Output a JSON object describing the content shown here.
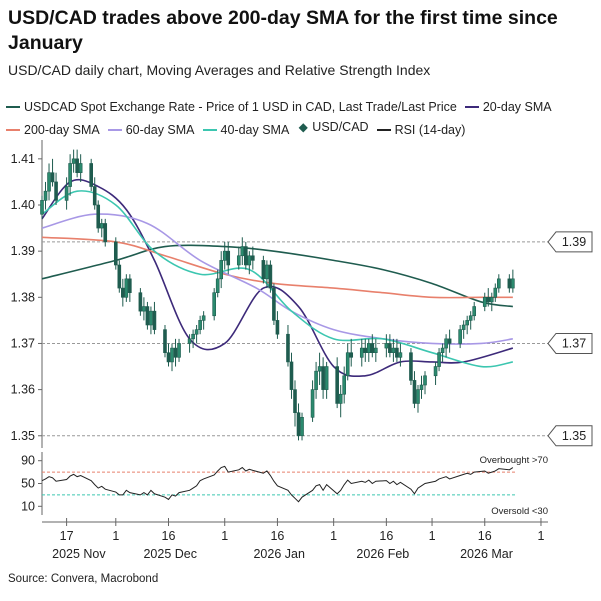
{
  "title": "USD/CAD trades above 200-day SMA for the first time since January",
  "subtitle": "USD/CAD daily chart, Moving Averages and Relative Strength Index",
  "source": "Source: Convera, Macrobond",
  "legend": [
    {
      "label": "USDCAD Spot Exchange Rate - Price of 1 USD in CAD, Last Trade/Last Price",
      "color": "#1f5c4f",
      "type": "line"
    },
    {
      "label": "20-day SMA",
      "color": "#3d2a7a",
      "type": "line"
    },
    {
      "label": "200-day SMA",
      "color": "#e8806c",
      "type": "line"
    },
    {
      "label": "60-day SMA",
      "color": "#a898e6",
      "type": "line"
    },
    {
      "label": "40-day SMA",
      "color": "#3cc6b0",
      "type": "line"
    },
    {
      "label": "USD/CAD",
      "color": "#1f5c4f",
      "type": "candle"
    },
    {
      "label": "RSI (14-day)",
      "color": "#222222",
      "type": "line"
    }
  ],
  "chart_data": {
    "type": "line",
    "main_panel": {
      "ylim": [
        1.348,
        1.413
      ],
      "yticks": [
        1.35,
        1.36,
        1.37,
        1.38,
        1.39,
        1.4,
        1.41
      ],
      "ytick_labels": [
        "1.35",
        "1.36",
        "1.37",
        "1.38",
        "1.39",
        "1.40",
        "1.41"
      ],
      "reference_lines": [
        {
          "value": 1.392,
          "label": "1.39"
        },
        {
          "value": 1.37,
          "label": "1.37"
        },
        {
          "value": 1.35,
          "label": "1.35"
        }
      ],
      "x": [
        "2025-11-10",
        "2025-11-11",
        "2025-11-12",
        "2025-11-13",
        "2025-11-14",
        "2025-11-17",
        "2025-11-18",
        "2025-11-19",
        "2025-11-20",
        "2025-11-21",
        "2025-11-24",
        "2025-11-25",
        "2025-11-26",
        "2025-11-27",
        "2025-11-28",
        "2025-12-01",
        "2025-12-02",
        "2025-12-03",
        "2025-12-04",
        "2025-12-05",
        "2025-12-08",
        "2025-12-09",
        "2025-12-10",
        "2025-12-11",
        "2025-12-12",
        "2025-12-15",
        "2025-12-16",
        "2025-12-17",
        "2025-12-18",
        "2025-12-19",
        "2025-12-22",
        "2025-12-23",
        "2025-12-24",
        "2025-12-25",
        "2025-12-26",
        "2025-12-29",
        "2025-12-30",
        "2025-12-31",
        "2026-01-01",
        "2026-01-02",
        "2026-01-05",
        "2026-01-06",
        "2026-01-07",
        "2026-01-08",
        "2026-01-09",
        "2026-01-12",
        "2026-01-13",
        "2026-01-14",
        "2026-01-15",
        "2026-01-16",
        "2026-01-19",
        "2026-01-20",
        "2026-01-21",
        "2026-01-22",
        "2026-01-23",
        "2026-01-26",
        "2026-01-27",
        "2026-01-28",
        "2026-01-29",
        "2026-01-30",
        "2026-02-02",
        "2026-02-03",
        "2026-02-04",
        "2026-02-05",
        "2026-02-06",
        "2026-02-09",
        "2026-02-10",
        "2026-02-11",
        "2026-02-12",
        "2026-02-13",
        "2026-02-16",
        "2026-02-17",
        "2026-02-18",
        "2026-02-19",
        "2026-02-20",
        "2026-02-23",
        "2026-02-24",
        "2026-02-25",
        "2026-02-26",
        "2026-02-27",
        "2026-03-02",
        "2026-03-03",
        "2026-03-04",
        "2026-03-05",
        "2026-03-06",
        "2026-03-09",
        "2026-03-10",
        "2026-03-11",
        "2026-03-12",
        "2026-03-13",
        "2026-03-16",
        "2026-03-17",
        "2026-03-18",
        "2026-03-19",
        "2026-03-20",
        "2026-03-23",
        "2026-03-24"
      ],
      "candles": [
        [
          1.398,
          1.402,
          1.397,
          1.401
        ],
        [
          1.401,
          1.405,
          1.399,
          1.403
        ],
        [
          1.403,
          1.409,
          1.401,
          1.407
        ],
        [
          1.407,
          1.41,
          1.404,
          1.405
        ],
        [
          1.405,
          1.407,
          1.4,
          1.401
        ],
        [
          1.401,
          1.406,
          1.399,
          1.404
        ],
        [
          1.404,
          1.411,
          1.402,
          1.409
        ],
        [
          1.409,
          1.412,
          1.407,
          1.41
        ],
        [
          1.41,
          1.412,
          1.406,
          1.407
        ],
        [
          1.407,
          1.411,
          1.405,
          1.409
        ],
        [
          1.409,
          1.41,
          1.403,
          1.404
        ],
        [
          1.404,
          1.406,
          1.399,
          1.4
        ],
        [
          1.4,
          1.401,
          1.394,
          1.395
        ],
        [
          1.395,
          1.397,
          1.393,
          1.396
        ],
        [
          1.396,
          1.397,
          1.391,
          1.392
        ],
        [
          1.392,
          1.393,
          1.386,
          1.387
        ],
        [
          1.387,
          1.388,
          1.381,
          1.382
        ],
        [
          1.382,
          1.384,
          1.378,
          1.38
        ],
        [
          1.38,
          1.385,
          1.379,
          1.384
        ],
        [
          1.384,
          1.385,
          1.379,
          1.381
        ],
        [
          1.381,
          1.382,
          1.376,
          1.377
        ],
        [
          1.377,
          1.38,
          1.375,
          1.378
        ],
        [
          1.378,
          1.379,
          1.373,
          1.374
        ],
        [
          1.374,
          1.378,
          1.372,
          1.377
        ],
        [
          1.377,
          1.379,
          1.372,
          1.373
        ],
        [
          1.373,
          1.374,
          1.367,
          1.368
        ],
        [
          1.368,
          1.37,
          1.365,
          1.366
        ],
        [
          1.366,
          1.37,
          1.364,
          1.369
        ],
        [
          1.369,
          1.371,
          1.365,
          1.367
        ],
        [
          1.367,
          1.371,
          1.366,
          1.37
        ],
        [
          1.37,
          1.372,
          1.368,
          1.371
        ],
        [
          1.371,
          1.373,
          1.369,
          1.372
        ],
        [
          1.372,
          1.374,
          1.37,
          1.373
        ],
        [
          1.373,
          1.376,
          1.372,
          1.375
        ],
        [
          1.375,
          1.377,
          1.373,
          1.376
        ],
        [
          1.376,
          1.382,
          1.375,
          1.381
        ],
        [
          1.381,
          1.386,
          1.38,
          1.384
        ],
        [
          1.384,
          1.39,
          1.382,
          1.388
        ],
        [
          1.388,
          1.392,
          1.386,
          1.39
        ],
        [
          1.39,
          1.392,
          1.385,
          1.387
        ],
        [
          1.387,
          1.391,
          1.386,
          1.389
        ],
        [
          1.389,
          1.393,
          1.387,
          1.391
        ],
        [
          1.391,
          1.392,
          1.386,
          1.387
        ],
        [
          1.387,
          1.39,
          1.385,
          1.389
        ],
        [
          1.389,
          1.391,
          1.386,
          1.388
        ],
        [
          1.388,
          1.389,
          1.383,
          1.384
        ],
        [
          1.384,
          1.388,
          1.382,
          1.387
        ],
        [
          1.387,
          1.388,
          1.381,
          1.382
        ],
        [
          1.382,
          1.383,
          1.374,
          1.375
        ],
        [
          1.375,
          1.377,
          1.371,
          1.372
        ],
        [
          1.372,
          1.374,
          1.365,
          1.366
        ],
        [
          1.366,
          1.368,
          1.358,
          1.36
        ],
        [
          1.36,
          1.362,
          1.352,
          1.355
        ],
        [
          1.355,
          1.357,
          1.349,
          1.35
        ],
        [
          1.35,
          1.355,
          1.349,
          1.354
        ],
        [
          1.354,
          1.362,
          1.353,
          1.36
        ],
        [
          1.36,
          1.366,
          1.358,
          1.364
        ],
        [
          1.364,
          1.368,
          1.361,
          1.365
        ],
        [
          1.365,
          1.367,
          1.358,
          1.36
        ],
        [
          1.36,
          1.366,
          1.358,
          1.365
        ],
        [
          1.365,
          1.367,
          1.356,
          1.357
        ],
        [
          1.357,
          1.361,
          1.354,
          1.359
        ],
        [
          1.359,
          1.365,
          1.357,
          1.363
        ],
        [
          1.363,
          1.37,
          1.362,
          1.368
        ],
        [
          1.368,
          1.371,
          1.365,
          1.367
        ],
        [
          1.367,
          1.371,
          1.365,
          1.369
        ],
        [
          1.369,
          1.371,
          1.366,
          1.368
        ],
        [
          1.368,
          1.371,
          1.366,
          1.37
        ],
        [
          1.37,
          1.372,
          1.367,
          1.368
        ],
        [
          1.368,
          1.371,
          1.366,
          1.369
        ],
        [
          1.369,
          1.372,
          1.367,
          1.37
        ],
        [
          1.37,
          1.372,
          1.367,
          1.368
        ],
        [
          1.368,
          1.371,
          1.366,
          1.369
        ],
        [
          1.369,
          1.371,
          1.366,
          1.367
        ],
        [
          1.367,
          1.37,
          1.365,
          1.368
        ],
        [
          1.368,
          1.369,
          1.361,
          1.362
        ],
        [
          1.362,
          1.364,
          1.356,
          1.357
        ],
        [
          1.357,
          1.361,
          1.355,
          1.36
        ],
        [
          1.36,
          1.363,
          1.358,
          1.361
        ],
        [
          1.361,
          1.364,
          1.359,
          1.363
        ],
        [
          1.363,
          1.366,
          1.361,
          1.365
        ],
        [
          1.365,
          1.369,
          1.364,
          1.368
        ],
        [
          1.368,
          1.37,
          1.366,
          1.369
        ],
        [
          1.369,
          1.372,
          1.367,
          1.371
        ],
        [
          1.371,
          1.373,
          1.368,
          1.37
        ],
        [
          1.37,
          1.374,
          1.369,
          1.373
        ],
        [
          1.373,
          1.375,
          1.371,
          1.374
        ],
        [
          1.374,
          1.376,
          1.372,
          1.375
        ],
        [
          1.375,
          1.377,
          1.373,
          1.376
        ],
        [
          1.376,
          1.379,
          1.375,
          1.378
        ],
        [
          1.378,
          1.381,
          1.377,
          1.38
        ],
        [
          1.38,
          1.382,
          1.378,
          1.379
        ],
        [
          1.379,
          1.381,
          1.377,
          1.38
        ],
        [
          1.38,
          1.383,
          1.379,
          1.382
        ],
        [
          1.382,
          1.385,
          1.381,
          1.384
        ],
        [
          1.384,
          1.385,
          1.381,
          1.382
        ],
        [
          1.382,
          1.386,
          1.381,
          1.384
        ]
      ],
      "series": [
        {
          "name": "USDCAD Spot Exchange Rate - Price of 1 USD in CAD, Last Trade/Last Price",
          "x": [
            "2025-11-10",
            "2025-12-01",
            "2025-12-15",
            "2026-01-01",
            "2026-01-15",
            "2026-02-01",
            "2026-02-15",
            "2026-03-01",
            "2026-03-15",
            "2026-03-24"
          ],
          "values": [
            1.384,
            1.388,
            1.391,
            1.391,
            1.39,
            1.388,
            1.386,
            1.383,
            1.379,
            1.378
          ]
        },
        {
          "name": "20-day SMA",
          "x": [
            "2025-11-10",
            "2025-11-18",
            "2025-11-26",
            "2025-12-04",
            "2025-12-12",
            "2025-12-22",
            "2026-01-01",
            "2026-01-12",
            "2026-01-22",
            "2026-02-01",
            "2026-02-10",
            "2026-02-20",
            "2026-03-01",
            "2026-03-10",
            "2026-03-24"
          ],
          "values": [
            1.397,
            1.405,
            1.404,
            1.399,
            1.388,
            1.371,
            1.37,
            1.382,
            1.378,
            1.365,
            1.363,
            1.366,
            1.366,
            1.366,
            1.369
          ]
        },
        {
          "name": "200-day SMA",
          "x": [
            "2025-11-10",
            "2025-12-01",
            "2025-12-15",
            "2026-01-01",
            "2026-01-15",
            "2026-02-01",
            "2026-02-15",
            "2026-03-01",
            "2026-03-15",
            "2026-03-24"
          ],
          "values": [
            1.393,
            1.392,
            1.389,
            1.385,
            1.383,
            1.382,
            1.381,
            1.38,
            1.38,
            1.38
          ]
        },
        {
          "name": "60-day SMA",
          "x": [
            "2025-11-10",
            "2025-11-25",
            "2025-12-10",
            "2025-12-25",
            "2026-01-10",
            "2026-01-20",
            "2026-02-01",
            "2026-02-15",
            "2026-03-01",
            "2026-03-15",
            "2026-03-24"
          ],
          "values": [
            1.395,
            1.398,
            1.396,
            1.388,
            1.382,
            1.377,
            1.373,
            1.371,
            1.37,
            1.37,
            1.371
          ]
        },
        {
          "name": "40-day SMA",
          "x": [
            "2025-11-10",
            "2025-11-20",
            "2025-12-01",
            "2025-12-12",
            "2025-12-25",
            "2026-01-08",
            "2026-01-20",
            "2026-02-01",
            "2026-02-15",
            "2026-03-01",
            "2026-03-15",
            "2026-03-24"
          ],
          "values": [
            1.398,
            1.403,
            1.4,
            1.39,
            1.385,
            1.386,
            1.377,
            1.371,
            1.371,
            1.368,
            1.365,
            1.366
          ]
        }
      ]
    },
    "rsi_panel": {
      "name": "RSI (14-day)",
      "ylim": [
        0,
        100
      ],
      "yticks": [
        10,
        50,
        90
      ],
      "ytick_labels": [
        "10",
        "50",
        "90"
      ],
      "overbought": 70,
      "oversold": 30,
      "overbought_label": "Overbought >70",
      "oversold_label": "Oversold <30",
      "values": [
        55,
        58,
        62,
        60,
        54,
        57,
        63,
        66,
        62,
        64,
        55,
        48,
        42,
        45,
        40,
        35,
        30,
        30,
        38,
        34,
        30,
        34,
        30,
        38,
        32,
        26,
        22,
        30,
        28,
        34,
        38,
        42,
        46,
        55,
        58,
        65,
        72,
        78,
        80,
        70,
        74,
        78,
        72,
        75,
        73,
        68,
        72,
        64,
        54,
        46,
        38,
        30,
        24,
        18,
        26,
        38,
        46,
        48,
        38,
        48,
        32,
        38,
        48,
        56,
        50,
        54,
        52,
        56,
        50,
        54,
        55,
        50,
        54,
        48,
        52,
        40,
        32,
        42,
        46,
        50,
        54,
        58,
        60,
        62,
        58,
        64,
        66,
        68,
        66,
        70,
        72,
        68,
        70,
        72,
        76,
        74,
        78
      ]
    },
    "x_axis": {
      "ticks": [
        {
          "date": "2025-11-17",
          "label": "17"
        },
        {
          "date": "2025-12-01",
          "label": "1"
        },
        {
          "date": "2025-12-16",
          "label": "16"
        },
        {
          "date": "2026-01-01",
          "label": "1"
        },
        {
          "date": "2026-01-16",
          "label": "16"
        },
        {
          "date": "2026-02-01",
          "label": "1"
        },
        {
          "date": "2026-02-16",
          "label": "16"
        },
        {
          "date": "2026-03-01",
          "label": "1"
        },
        {
          "date": "2026-03-16",
          "label": "16"
        },
        {
          "date": "2026-04-01",
          "label": "1"
        }
      ],
      "month_labels": [
        "2025 Nov",
        "2025 Dec",
        "2026 Jan",
        "2026 Feb",
        "2026 Mar"
      ]
    }
  }
}
